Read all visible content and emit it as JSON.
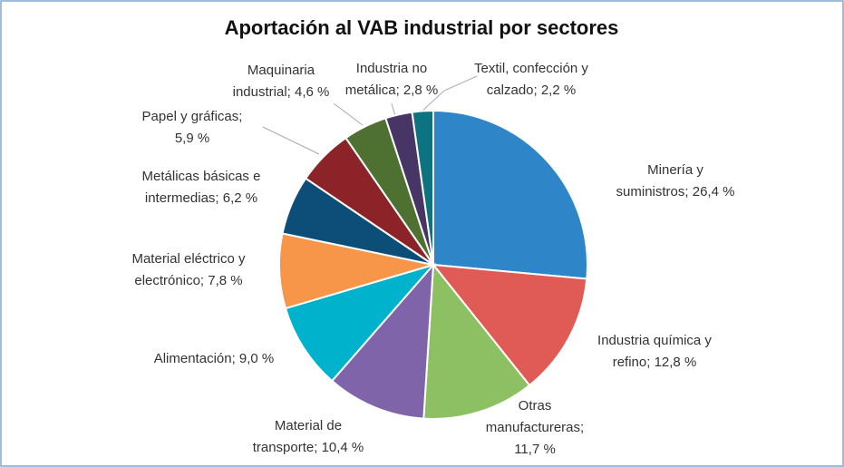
{
  "chart_data": {
    "type": "pie",
    "title": "Aportación al VAB industrial por sectores",
    "values": [
      26.4,
      12.8,
      11.7,
      10.4,
      9.0,
      7.8,
      6.2,
      5.9,
      4.6,
      2.8,
      2.2
    ],
    "value_labels": [
      "Minería y suministros; 26,4 %",
      "Industria química y refino; 12,8 %",
      "Otras manufactureras; 11,7 %",
      "Material de transporte; 10,4 %",
      "Alimentación; 9,0 %",
      "Material eléctrico y electrónico; 7,8 %",
      "Metálicas básicas e intermedias; 6,2 %",
      "Papel y gráficas; 5,9 %",
      "Maquinaria industrial; 4,6 %",
      "Industria no metálica; 2,8 %",
      "Textil, confección y calzado; 2,2 %"
    ],
    "colors": [
      "#2e86c8",
      "#e05a56",
      "#8cc063",
      "#8064a9",
      "#00b2cc",
      "#f79548",
      "#0d4e78",
      "#8b2329",
      "#4e7132",
      "#463565",
      "#0d7380"
    ]
  }
}
